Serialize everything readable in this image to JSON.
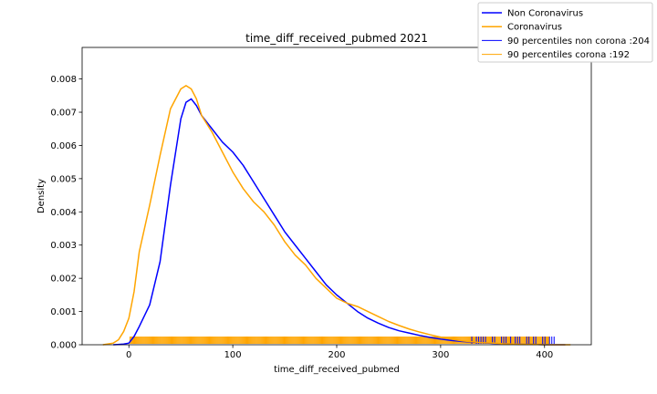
{
  "chart_data": {
    "type": "line",
    "title": "time_diff_received_pubmed 2021",
    "xlabel": "time_diff_received_pubmed",
    "ylabel": "Density",
    "xlim": [
      -45,
      445
    ],
    "ylim": [
      0,
      0.00895
    ],
    "xticks": [
      0,
      100,
      200,
      300,
      400
    ],
    "xtick_labels": [
      "0",
      "100",
      "200",
      "300",
      "400"
    ],
    "yticks": [
      0,
      0.001,
      0.002,
      0.003,
      0.004,
      0.005,
      0.006,
      0.007,
      0.008
    ],
    "ytick_labels": [
      "0.000",
      "0.001",
      "0.002",
      "0.003",
      "0.004",
      "0.005",
      "0.006",
      "0.007",
      "0.008"
    ],
    "grid": false,
    "legend_position": "top-right (outside axes)",
    "series": [
      {
        "name": "Non Coronavirus",
        "color": "#0000ff",
        "x": [
          -15,
          -5,
          0,
          5,
          10,
          20,
          30,
          40,
          50,
          55,
          60,
          65,
          70,
          80,
          90,
          100,
          110,
          120,
          130,
          140,
          150,
          160,
          170,
          180,
          190,
          200,
          210,
          220,
          230,
          240,
          250,
          260,
          270,
          280,
          290,
          300,
          310,
          320,
          330,
          340,
          350,
          360,
          370,
          380,
          390,
          400,
          410,
          420
        ],
        "y": [
          0.0,
          2e-05,
          5e-05,
          0.00025,
          0.00055,
          0.0012,
          0.0025,
          0.0048,
          0.0068,
          0.0073,
          0.0074,
          0.0072,
          0.0069,
          0.0065,
          0.0061,
          0.0058,
          0.0054,
          0.0049,
          0.0044,
          0.0039,
          0.0034,
          0.003,
          0.0026,
          0.0022,
          0.0018,
          0.0015,
          0.00125,
          0.001,
          0.0008,
          0.00065,
          0.00052,
          0.00042,
          0.00035,
          0.00028,
          0.00022,
          0.00017,
          0.00013,
          0.0001,
          8e-05,
          6e-05,
          4e-05,
          3e-05,
          2e-05,
          1e-05,
          1e-05,
          0.0,
          0.0,
          0.0
        ]
      },
      {
        "name": "Coronavirus",
        "color": "#ffa500",
        "x": [
          -25,
          -15,
          -10,
          -5,
          0,
          5,
          10,
          20,
          30,
          40,
          50,
          55,
          60,
          65,
          70,
          80,
          90,
          100,
          110,
          120,
          130,
          140,
          150,
          160,
          170,
          180,
          190,
          200,
          210,
          220,
          230,
          240,
          250,
          260,
          270,
          280,
          290,
          300,
          310,
          320,
          330,
          340,
          350,
          360,
          370,
          380,
          390,
          400,
          410,
          425
        ],
        "y": [
          0.0,
          5e-05,
          0.00015,
          0.0004,
          0.0008,
          0.0016,
          0.0028,
          0.0042,
          0.0057,
          0.0071,
          0.0077,
          0.0078,
          0.0077,
          0.0074,
          0.0069,
          0.0064,
          0.0058,
          0.0052,
          0.0047,
          0.0043,
          0.004,
          0.0036,
          0.0031,
          0.0027,
          0.0024,
          0.002,
          0.0017,
          0.0014,
          0.00125,
          0.00115,
          0.001,
          0.00085,
          0.0007,
          0.00058,
          0.00047,
          0.00038,
          0.0003,
          0.00023,
          0.00017,
          0.00012,
          9e-05,
          6e-05,
          5e-05,
          3e-05,
          2e-05,
          1e-05,
          1e-05,
          0.0,
          0.0,
          0.0
        ]
      }
    ],
    "percentile_lines": [
      {
        "name": "90 percentiles non corona :204",
        "color": "#0000ff",
        "x": 204
      },
      {
        "name": "90 percentiles corona :192",
        "color": "#ffa500",
        "x": 192
      }
    ],
    "rug": {
      "orange_range": [
        1,
        405
      ],
      "blue_range": [
        330,
        410
      ]
    }
  }
}
